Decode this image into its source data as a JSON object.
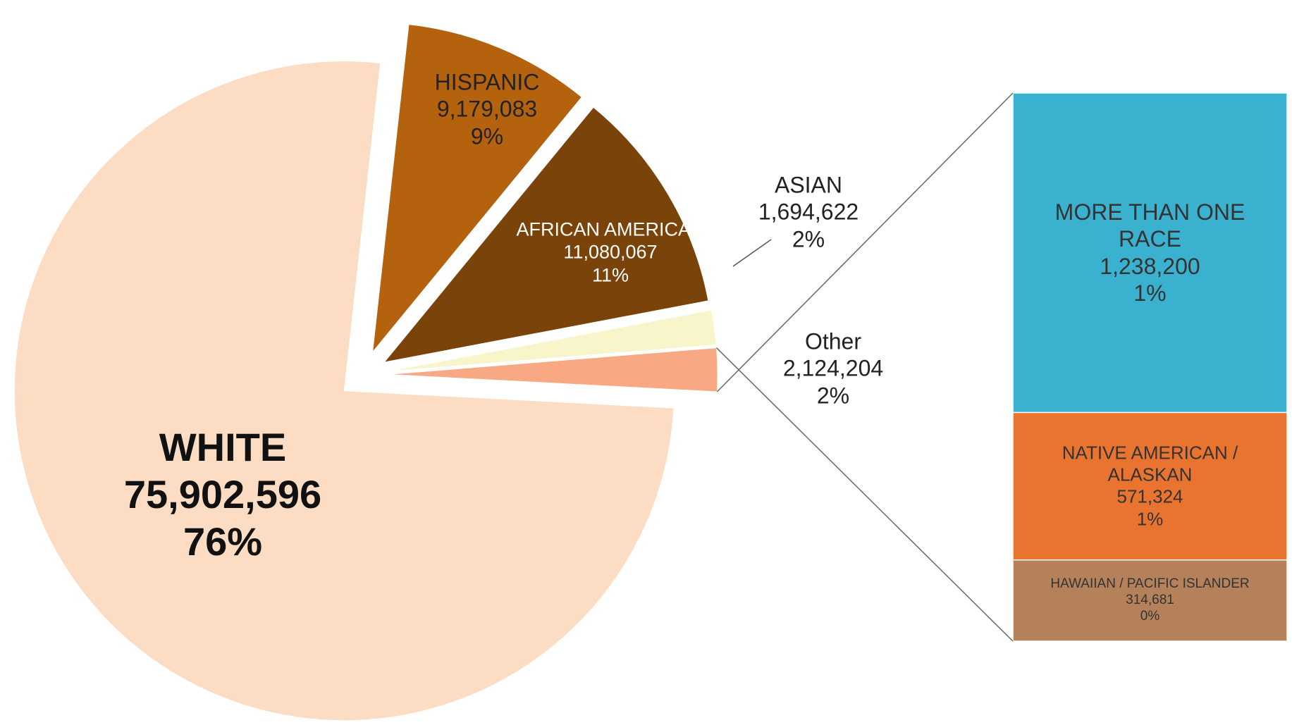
{
  "chart_data": {
    "type": "pie-of-bar",
    "categories": [
      "WHITE",
      "HISPANIC",
      "AFRICAN AMERICAN",
      "ASIAN",
      "Other"
    ],
    "values": [
      75902596,
      9179083,
      11080067,
      1694622,
      2124204
    ],
    "value_labels": [
      "75,902,596",
      "9,179,083",
      "11,080,067",
      "1,694,622",
      "2,124,204"
    ],
    "percent_labels": [
      "76%",
      "9%",
      "11%",
      "2%",
      "2%"
    ],
    "colors": [
      "#fcdcc2",
      "#b5620f",
      "#7a4309",
      "#f8f5cb",
      "#f8a883"
    ],
    "breakdown": {
      "categories": [
        "MORE THAN ONE RACE",
        "NATIVE AMERICAN / ALASKAN",
        "HAWAIIAN / PACIFIC ISLANDER"
      ],
      "values": [
        1238200,
        571324,
        314681
      ],
      "value_labels": [
        "1,238,200",
        "571,324",
        "314,681"
      ],
      "percent_labels": [
        "1%",
        "1%",
        "0%"
      ],
      "colors": [
        "#3bb1d0",
        "#e8742f",
        "#b5815b"
      ]
    }
  }
}
